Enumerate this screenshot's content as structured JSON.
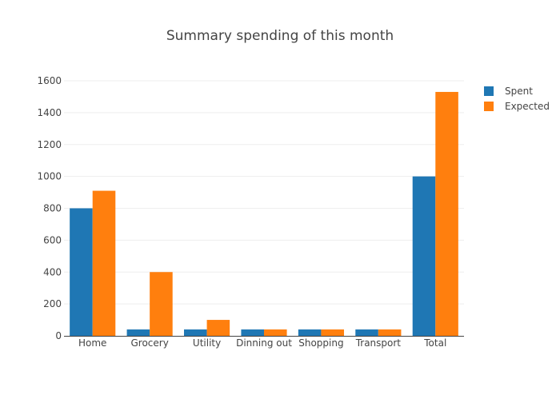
{
  "chart_data": {
    "type": "bar",
    "title": "Summary spending of this month",
    "xlabel": "",
    "ylabel": "",
    "categories": [
      "Home",
      "Grocery",
      "Utility",
      "Dinning out",
      "Shopping",
      "Transport",
      "Total"
    ],
    "series": [
      {
        "name": "Spent",
        "color": "#1f77b4",
        "values": [
          800,
          40,
          40,
          40,
          40,
          40,
          1000
        ]
      },
      {
        "name": "Expected",
        "color": "#ff7f0e",
        "values": [
          910,
          400,
          100,
          40,
          40,
          40,
          1530
        ]
      }
    ],
    "ylim": [
      0,
      1600
    ],
    "yticks": [
      0,
      200,
      400,
      600,
      800,
      1000,
      1200,
      1400,
      1600
    ],
    "grid": true,
    "legend_position": "top-right"
  }
}
